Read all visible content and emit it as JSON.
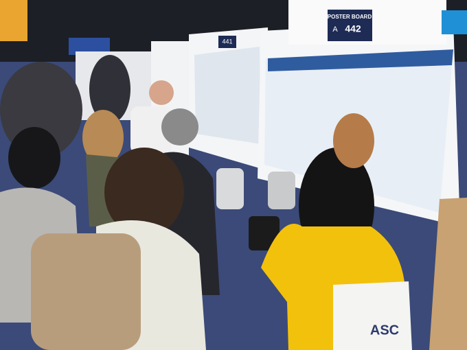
{
  "signs": [
    {
      "label": "POSTER BOARD",
      "row": "A",
      "number": "442"
    },
    {
      "number": "441"
    }
  ],
  "bag_text": "ASC"
}
